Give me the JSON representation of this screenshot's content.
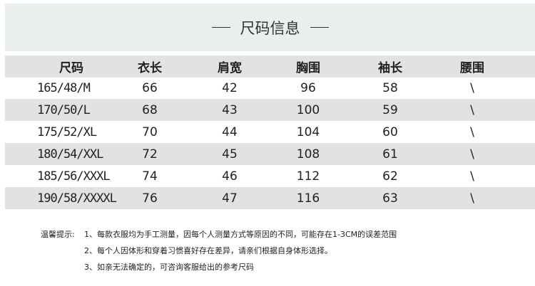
{
  "title": "尺码信息",
  "headers": [
    "尺码",
    "衣长",
    "肩宽",
    "胸围",
    "袖长",
    "腰围"
  ],
  "rows": [
    [
      "165/48/M",
      "66",
      "42",
      "96",
      "58",
      "\\"
    ],
    [
      "170/50/L",
      "68",
      "43",
      "100",
      "59",
      "\\"
    ],
    [
      "175/52/XL",
      "70",
      "44",
      "104",
      "60",
      "\\"
    ],
    [
      "180/54/XXL",
      "72",
      "45",
      "108",
      "61",
      "\\"
    ],
    [
      "185/56/XXXL",
      "74",
      "46",
      "112",
      "62",
      "\\"
    ],
    [
      "190/58/XXXXL",
      "76",
      "47",
      "116",
      "63",
      "\\"
    ]
  ],
  "notes": {
    "label": "温馨提示:",
    "items": [
      "1、每款衣服均为手工测量，因每个人测量方式等原因的不同，可能存在1-3CM的误差范围",
      "2、每个人因体形和穿着习惯喜好存在差异，请亲们根据自身体形选择。",
      "3、如亲无法确定的，可咨询客服给出的参考尺码"
    ]
  }
}
